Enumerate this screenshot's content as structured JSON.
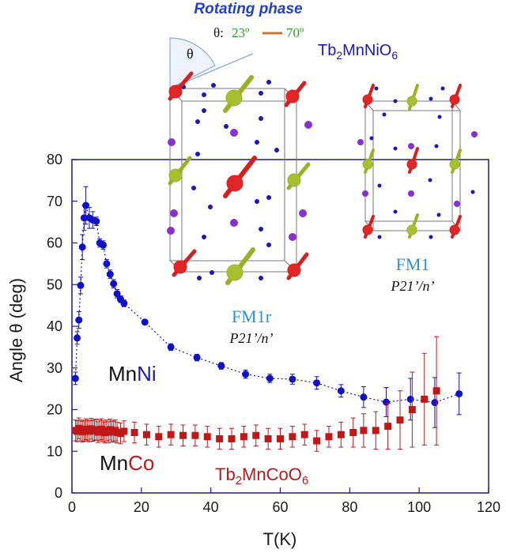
{
  "chart_data": {
    "type": "scatter",
    "xlabel": "T(K)",
    "ylabel": "Angle θ (deg)",
    "xlim": [
      0,
      120
    ],
    "ylim": [
      0,
      80
    ],
    "x_ticks": [
      "0",
      "20",
      "40",
      "60",
      "80",
      "100",
      "120"
    ],
    "y_ticks": [
      "0",
      "10",
      "20",
      "30",
      "40",
      "50",
      "60",
      "70",
      "80"
    ],
    "series": [
      {
        "name": "MnNi",
        "color": "#1010c8",
        "marker": "circle",
        "connect": "dotted",
        "x": [
          1,
          1.5,
          2,
          2.5,
          3,
          3.5,
          4,
          5,
          6,
          7,
          8,
          9,
          10,
          11,
          12,
          13,
          14,
          15,
          21,
          28.5,
          36,
          43,
          50,
          57,
          63.5,
          70.5,
          77.5,
          84,
          90.5,
          97.5,
          104.5,
          111.5
        ],
        "y": [
          27.5,
          37.2,
          41.5,
          49.8,
          59,
          66,
          69,
          66,
          65.5,
          65.2,
          60,
          59.5,
          55,
          52.5,
          50.2,
          47.8,
          46.5,
          45.5,
          41,
          35,
          32.5,
          30.5,
          28.5,
          27.5,
          27.3,
          26.4,
          24.5,
          23,
          21.8,
          22.5,
          21.7,
          23.8
        ],
        "err": [
          1.5,
          1.5,
          2,
          2,
          3,
          3,
          4.5,
          2.5,
          2,
          1,
          1,
          1,
          1,
          1,
          1,
          1,
          0.8,
          0.8,
          0.6,
          0.8,
          0.8,
          0.8,
          1,
          1,
          1.2,
          1.5,
          1.5,
          2.5,
          3.5,
          5,
          6,
          5
        ]
      },
      {
        "name": "MnCo",
        "color": "#c01818",
        "marker": "square",
        "x": [
          1,
          1.5,
          2,
          2.5,
          3,
          3.5,
          4,
          4.5,
          5,
          5.5,
          6,
          6.5,
          7,
          7.5,
          8,
          8.5,
          9,
          9.5,
          10,
          10.5,
          11,
          11.5,
          12,
          12.5,
          13,
          14,
          15,
          18,
          21.5,
          25,
          28.5,
          32,
          35.5,
          39,
          42.5,
          46,
          49.5,
          53,
          56.5,
          60,
          63.5,
          67,
          70.5,
          74,
          77.5,
          81,
          84,
          87.5,
          91,
          94.5,
          98,
          101.5,
          105
        ],
        "y": [
          15,
          14.8,
          15.5,
          15,
          14.7,
          14.9,
          15.3,
          15,
          14.8,
          15.4,
          14.9,
          15.1,
          15.2,
          14.6,
          15,
          15.3,
          14.8,
          14.5,
          15,
          14.6,
          15.2,
          14.8,
          14.7,
          15,
          14.5,
          14.3,
          14.8,
          14.5,
          14,
          13.5,
          14,
          13.8,
          13.8,
          13.5,
          13,
          13,
          13.5,
          13.8,
          13,
          13,
          13.5,
          14,
          12.5,
          13.5,
          14,
          14.5,
          15,
          15,
          16,
          17.5,
          20,
          22.5,
          24.5
        ],
        "err": [
          2.5,
          2.5,
          2.5,
          2.5,
          2.5,
          2.5,
          2.5,
          2.5,
          2.5,
          2.5,
          2.5,
          2.5,
          2.5,
          2.5,
          2.5,
          2.5,
          2.5,
          2.5,
          2.5,
          2.5,
          2.5,
          2.5,
          2.5,
          2.5,
          2.5,
          2.5,
          2.5,
          2.5,
          2.5,
          2.5,
          2.5,
          2.5,
          2.5,
          2.5,
          2.5,
          2.5,
          2.5,
          2.5,
          2.5,
          2.5,
          2.5,
          2.5,
          2.5,
          2.5,
          3,
          3.5,
          4,
          4.5,
          5.5,
          7,
          9,
          11,
          13
        ]
      }
    ],
    "series_labels": {
      "mnni_prefix": "Mn",
      "mnni_suffix": "Ni",
      "mnco_prefix": "Mn",
      "mnco_suffix": "Co",
      "tb2mncoo6_base": "Tb",
      "tb2mncoo6_sub1": "2",
      "tb2mncoo6_mid": "MnCoO",
      "tb2mncoo6_sub2": "6"
    },
    "annotations": {
      "rotating_phase": "Rotating phase",
      "theta_symbol": "θ",
      "theta_range_prefix": "θ:",
      "theta_start": "23º",
      "theta_end": "70º",
      "compound_top_base": "Tb",
      "compound_top_sub1": "2",
      "compound_top_mid": "MnNiO",
      "compound_top_sub2": "6",
      "phase_left": "FM1r",
      "spacegroup_left": "P21’/n’",
      "phase_right": "FM1",
      "spacegroup_right": "P21’/n’"
    }
  }
}
